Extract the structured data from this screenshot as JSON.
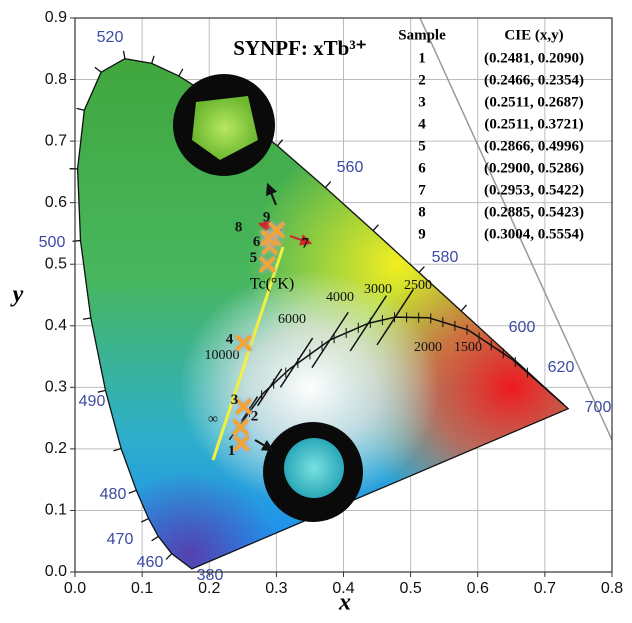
{
  "chart_data": {
    "type": "scatter",
    "title": "SYNPF: xTb³⁺",
    "x_label": "x",
    "y_label": "y",
    "xlim": [
      0,
      0.8
    ],
    "ylim": [
      0,
      0.9
    ],
    "xticks": [
      {
        "value": 0,
        "label": "0.0"
      },
      0.1,
      0.2,
      0.3,
      0.4,
      0.5,
      0.6,
      0.7,
      0.8
    ],
    "yticks": [
      {
        "value": 0,
        "label": "0.0"
      },
      0.1,
      0.2,
      0.3,
      0.4,
      0.5,
      0.6,
      0.7,
      0.8,
      0.9
    ],
    "grid": true,
    "x": [
      0.2481,
      0.2466,
      0.2511,
      0.2511,
      0.2866,
      0.29,
      0.2953,
      0.2885,
      0.3004
    ],
    "values": [
      0.209,
      0.2354,
      0.2687,
      0.3721,
      0.4996,
      0.5286,
      0.5422,
      0.5423,
      0.5554
    ],
    "point_labels": [
      "1",
      "2",
      "3",
      "4",
      "5",
      "6",
      "7",
      "8",
      "9"
    ],
    "color": "#f0a536",
    "wavelength_labels": [
      "380",
      "460",
      "470",
      "480",
      "490",
      "500",
      "520",
      "560",
      "580",
      "600",
      "620",
      "700"
    ],
    "temperature_labels": [
      "10000",
      "6000",
      "4000",
      "3000",
      "2500",
      "2000",
      "1500",
      "∞"
    ],
    "temperature_axis_label": "Tc(°K)"
  },
  "table": {
    "header": [
      "Sample",
      "CIE (x,y)"
    ],
    "rows": [
      [
        "1",
        "(0.2481, 0.2090)"
      ],
      [
        "2",
        "(0.2466, 0.2354)"
      ],
      [
        "3",
        "(0.2511, 0.2687)"
      ],
      [
        "4",
        "(0.2511, 0.3721)"
      ],
      [
        "5",
        "(0.2866, 0.4996)"
      ],
      [
        "6",
        "(0.2900, 0.5286)"
      ],
      [
        "7",
        "(0.2953, 0.5422)"
      ],
      [
        "8",
        "(0.2885, 0.5423)"
      ],
      [
        "9",
        "(0.3004, 0.5554)"
      ]
    ]
  }
}
